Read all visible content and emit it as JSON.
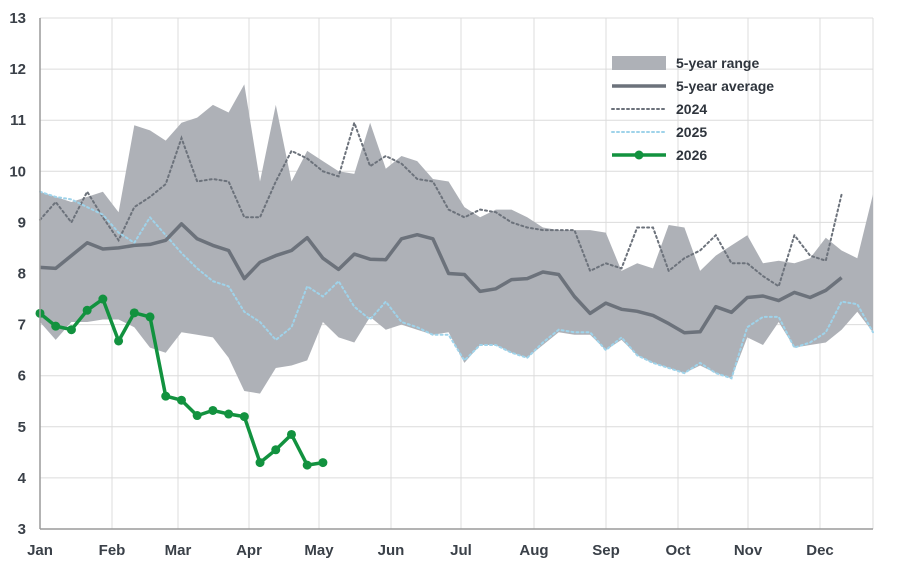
{
  "chart_data": {
    "type": "line",
    "xlabel": "",
    "ylabel": "",
    "ylim": [
      3,
      13
    ],
    "yticks": [
      "3",
      "4",
      "5",
      "6",
      "7",
      "8",
      "9",
      "10",
      "11",
      "12",
      "13"
    ],
    "months": [
      "Jan",
      "Feb",
      "Mar",
      "Apr",
      "May",
      "Jun",
      "Jul",
      "Aug",
      "Sep",
      "Oct",
      "Nov",
      "Dec"
    ],
    "grid": true,
    "legend_position": "top-right",
    "legend": [
      "5-year range",
      "5-year average",
      "2024",
      "2025",
      "2026"
    ],
    "colors": {
      "range": "#aeb1b7",
      "average": "#6c727b",
      "y2024": "#6c727b",
      "y2025": "#9fd3ea",
      "y2026": "#12923f",
      "grid": "#dcdcdc",
      "axis": "#9a9a9a"
    },
    "series": [
      {
        "name": "5-year range",
        "kind": "band",
        "points": [
          [
            1,
            9.6
          ],
          [
            2,
            9.5
          ],
          [
            3,
            9.4
          ],
          [
            4,
            9.5
          ],
          [
            5,
            9.6
          ],
          [
            6,
            9.2
          ],
          [
            7,
            10.9
          ],
          [
            8,
            10.8
          ],
          [
            9,
            10.6
          ],
          [
            10,
            10.95
          ],
          [
            11,
            11.05
          ],
          [
            12,
            11.3
          ],
          [
            13,
            11.15
          ],
          [
            14,
            11.7
          ],
          [
            15,
            9.8
          ],
          [
            16,
            11.3
          ],
          [
            17,
            9.8
          ],
          [
            18,
            10.4
          ],
          [
            19,
            10.2
          ],
          [
            20,
            10.0
          ],
          [
            21,
            9.95
          ],
          [
            22,
            10.95
          ],
          [
            23,
            10.05
          ],
          [
            24,
            10.3
          ],
          [
            25,
            10.2
          ],
          [
            26,
            9.85
          ],
          [
            27,
            9.8
          ],
          [
            28,
            9.3
          ],
          [
            29,
            9.1
          ],
          [
            30,
            9.25
          ],
          [
            31,
            9.25
          ],
          [
            32,
            9.1
          ],
          [
            33,
            8.9
          ],
          [
            34,
            8.85
          ],
          [
            35,
            8.85
          ],
          [
            36,
            8.85
          ],
          [
            37,
            8.8
          ],
          [
            38,
            8.05
          ],
          [
            39,
            8.2
          ],
          [
            40,
            8.1
          ],
          [
            41,
            8.95
          ],
          [
            42,
            8.9
          ],
          [
            43,
            8.05
          ],
          [
            44,
            8.35
          ],
          [
            45,
            8.55
          ],
          [
            46,
            8.75
          ],
          [
            47,
            8.2
          ],
          [
            48,
            8.25
          ],
          [
            49,
            8.2
          ],
          [
            50,
            8.3
          ],
          [
            51,
            8.7
          ],
          [
            52,
            8.45
          ],
          [
            53,
            8.3
          ],
          [
            54,
            9.55
          ]
        ],
        "lower": [
          [
            1,
            7.05
          ],
          [
            2,
            6.7
          ],
          [
            3,
            7.05
          ],
          [
            4,
            7.05
          ],
          [
            5,
            7.1
          ],
          [
            6,
            7.1
          ],
          [
            7,
            6.95
          ],
          [
            8,
            6.55
          ],
          [
            9,
            6.45
          ],
          [
            10,
            6.85
          ],
          [
            11,
            6.8
          ],
          [
            12,
            6.75
          ],
          [
            13,
            6.35
          ],
          [
            14,
            5.7
          ],
          [
            15,
            5.65
          ],
          [
            16,
            6.15
          ],
          [
            17,
            6.2
          ],
          [
            18,
            6.3
          ],
          [
            19,
            7.05
          ],
          [
            20,
            6.75
          ],
          [
            21,
            6.65
          ],
          [
            22,
            7.15
          ],
          [
            23,
            6.9
          ],
          [
            24,
            7.0
          ],
          [
            25,
            6.9
          ],
          [
            26,
            6.8
          ],
          [
            27,
            6.85
          ],
          [
            28,
            6.25
          ],
          [
            29,
            6.6
          ],
          [
            30,
            6.6
          ],
          [
            31,
            6.45
          ],
          [
            32,
            6.35
          ],
          [
            33,
            6.6
          ],
          [
            34,
            6.85
          ],
          [
            35,
            6.8
          ],
          [
            36,
            6.8
          ],
          [
            37,
            6.5
          ],
          [
            38,
            6.7
          ],
          [
            39,
            6.4
          ],
          [
            40,
            6.25
          ],
          [
            41,
            6.15
          ],
          [
            42,
            6.05
          ],
          [
            43,
            6.2
          ],
          [
            44,
            6.05
          ],
          [
            45,
            5.95
          ],
          [
            46,
            6.75
          ],
          [
            47,
            6.6
          ],
          [
            48,
            7.05
          ],
          [
            49,
            6.55
          ],
          [
            50,
            6.6
          ],
          [
            51,
            6.65
          ],
          [
            52,
            6.9
          ],
          [
            53,
            7.25
          ],
          [
            54,
            6.85
          ]
        ]
      },
      {
        "name": "5-year average",
        "kind": "line",
        "points": [
          [
            1,
            8.12
          ],
          [
            2,
            8.1
          ],
          [
            3,
            8.35
          ],
          [
            4,
            8.6
          ],
          [
            5,
            8.48
          ],
          [
            6,
            8.5
          ],
          [
            7,
            8.55
          ],
          [
            8,
            8.57
          ],
          [
            9,
            8.65
          ],
          [
            10,
            8.97
          ],
          [
            11,
            8.68
          ],
          [
            12,
            8.55
          ],
          [
            13,
            8.45
          ],
          [
            14,
            7.9
          ],
          [
            15,
            8.22
          ],
          [
            16,
            8.35
          ],
          [
            17,
            8.45
          ],
          [
            18,
            8.7
          ],
          [
            19,
            8.3
          ],
          [
            20,
            8.08
          ],
          [
            21,
            8.38
          ],
          [
            22,
            8.28
          ],
          [
            23,
            8.27
          ],
          [
            24,
            8.68
          ],
          [
            25,
            8.76
          ],
          [
            26,
            8.68
          ],
          [
            27,
            8.0
          ],
          [
            28,
            7.98
          ],
          [
            29,
            7.65
          ],
          [
            30,
            7.7
          ],
          [
            31,
            7.88
          ],
          [
            32,
            7.9
          ],
          [
            33,
            8.03
          ],
          [
            34,
            7.98
          ],
          [
            35,
            7.55
          ],
          [
            36,
            7.22
          ],
          [
            37,
            7.42
          ],
          [
            38,
            7.3
          ],
          [
            39,
            7.26
          ],
          [
            40,
            7.18
          ],
          [
            41,
            7.02
          ],
          [
            42,
            6.84
          ],
          [
            43,
            6.86
          ],
          [
            44,
            7.35
          ],
          [
            45,
            7.24
          ],
          [
            46,
            7.53
          ],
          [
            47,
            7.56
          ],
          [
            48,
            7.47
          ],
          [
            49,
            7.63
          ],
          [
            50,
            7.53
          ],
          [
            51,
            7.67
          ],
          [
            52,
            7.92
          ]
        ]
      },
      {
        "name": "2024",
        "kind": "dotted",
        "points": [
          [
            1,
            9.05
          ],
          [
            2,
            9.4
          ],
          [
            3,
            9.0
          ],
          [
            4,
            9.6
          ],
          [
            5,
            9.1
          ],
          [
            6,
            8.65
          ],
          [
            7,
            9.3
          ],
          [
            8,
            9.5
          ],
          [
            9,
            9.75
          ],
          [
            10,
            10.65
          ],
          [
            11,
            9.8
          ],
          [
            12,
            9.85
          ],
          [
            13,
            9.8
          ],
          [
            14,
            9.1
          ],
          [
            15,
            9.1
          ],
          [
            16,
            9.8
          ],
          [
            17,
            10.4
          ],
          [
            18,
            10.25
          ],
          [
            19,
            10.0
          ],
          [
            20,
            9.9
          ],
          [
            21,
            10.95
          ],
          [
            22,
            10.1
          ],
          [
            23,
            10.3
          ],
          [
            24,
            10.15
          ],
          [
            25,
            9.85
          ],
          [
            26,
            9.8
          ],
          [
            27,
            9.25
          ],
          [
            28,
            9.1
          ],
          [
            29,
            9.25
          ],
          [
            30,
            9.2
          ],
          [
            31,
            9.0
          ],
          [
            32,
            8.9
          ],
          [
            33,
            8.85
          ],
          [
            34,
            8.85
          ],
          [
            35,
            8.85
          ],
          [
            36,
            8.05
          ],
          [
            37,
            8.2
          ],
          [
            38,
            8.1
          ],
          [
            39,
            8.9
          ],
          [
            40,
            8.9
          ],
          [
            41,
            8.05
          ],
          [
            42,
            8.3
          ],
          [
            43,
            8.45
          ],
          [
            44,
            8.75
          ],
          [
            45,
            8.2
          ],
          [
            46,
            8.2
          ],
          [
            47,
            7.95
          ],
          [
            48,
            7.75
          ],
          [
            49,
            8.75
          ],
          [
            50,
            8.35
          ],
          [
            51,
            8.25
          ],
          [
            52,
            9.55
          ]
        ]
      },
      {
        "name": "2025",
        "kind": "dotted",
        "points": [
          [
            1,
            9.6
          ],
          [
            2,
            9.5
          ],
          [
            3,
            9.45
          ],
          [
            4,
            9.3
          ],
          [
            5,
            9.15
          ],
          [
            6,
            8.8
          ],
          [
            7,
            8.6
          ],
          [
            8,
            9.1
          ],
          [
            9,
            8.75
          ],
          [
            10,
            8.4
          ],
          [
            11,
            8.1
          ],
          [
            12,
            7.85
          ],
          [
            13,
            7.75
          ],
          [
            14,
            7.25
          ],
          [
            15,
            7.05
          ],
          [
            16,
            6.7
          ],
          [
            17,
            6.95
          ],
          [
            18,
            7.75
          ],
          [
            19,
            7.55
          ],
          [
            20,
            7.85
          ],
          [
            21,
            7.35
          ],
          [
            22,
            7.1
          ],
          [
            23,
            7.45
          ],
          [
            24,
            7.05
          ],
          [
            25,
            6.95
          ],
          [
            26,
            6.8
          ],
          [
            27,
            6.8
          ],
          [
            28,
            6.3
          ],
          [
            29,
            6.6
          ],
          [
            30,
            6.6
          ],
          [
            31,
            6.45
          ],
          [
            32,
            6.35
          ],
          [
            33,
            6.65
          ],
          [
            34,
            6.9
          ],
          [
            35,
            6.85
          ],
          [
            36,
            6.85
          ],
          [
            37,
            6.5
          ],
          [
            38,
            6.75
          ],
          [
            39,
            6.4
          ],
          [
            40,
            6.25
          ],
          [
            41,
            6.15
          ],
          [
            42,
            6.05
          ],
          [
            43,
            6.25
          ],
          [
            44,
            6.05
          ],
          [
            45,
            5.95
          ],
          [
            46,
            6.95
          ],
          [
            47,
            7.15
          ],
          [
            48,
            7.15
          ],
          [
            49,
            6.55
          ],
          [
            50,
            6.65
          ],
          [
            51,
            6.85
          ],
          [
            52,
            7.45
          ],
          [
            53,
            7.4
          ],
          [
            54,
            6.85
          ]
        ]
      },
      {
        "name": "2026",
        "kind": "line-markers",
        "points": [
          [
            1,
            7.22
          ],
          [
            2,
            6.97
          ],
          [
            3,
            6.9
          ],
          [
            4,
            7.28
          ],
          [
            5,
            7.5
          ],
          [
            6,
            6.68
          ],
          [
            7,
            7.23
          ],
          [
            8,
            7.15
          ],
          [
            9,
            5.6
          ],
          [
            10,
            5.52
          ],
          [
            11,
            5.22
          ],
          [
            12,
            5.32
          ],
          [
            13,
            5.25
          ],
          [
            14,
            5.2
          ],
          [
            15,
            4.3
          ],
          [
            16,
            4.55
          ],
          [
            17,
            4.85
          ],
          [
            18,
            4.25
          ],
          [
            19,
            4.3
          ]
        ]
      }
    ]
  }
}
